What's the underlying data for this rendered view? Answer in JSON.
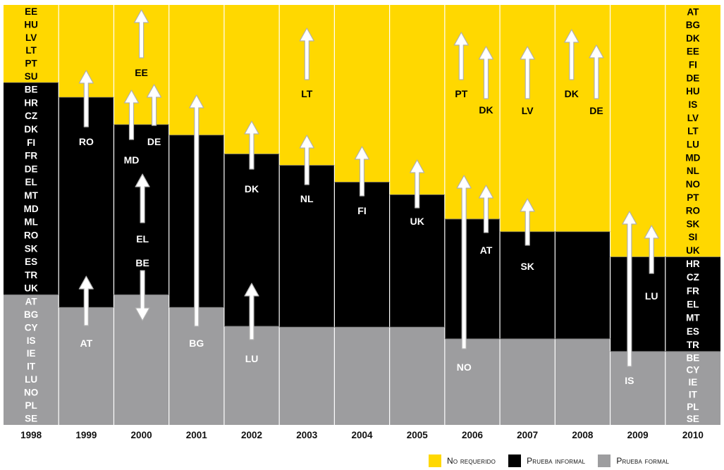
{
  "colors": {
    "no_requerido": "#FFD800",
    "informal": "#000000",
    "formal": "#9D9D9F",
    "arrow": "#FFFFFF"
  },
  "legend": [
    {
      "key": "no_requerido",
      "label": "No requerido"
    },
    {
      "key": "informal",
      "label": "Prueba informal"
    },
    {
      "key": "formal",
      "label": "Prueba formal"
    }
  ],
  "chart_data": {
    "type": "bar",
    "stacked": true,
    "categories": [
      "1998",
      "1999",
      "2000",
      "2001",
      "2002",
      "2003",
      "2004",
      "2005",
      "2006",
      "2007",
      "2008",
      "2009",
      "2010"
    ],
    "ylim": [
      0,
      100
    ],
    "series": [
      {
        "key": "formal",
        "name": "Prueba formal",
        "values": [
          31,
          28,
          31,
          28,
          23.5,
          23.3,
          23.3,
          23.3,
          20.5,
          20.5,
          20.5,
          17.5,
          17.5
        ]
      },
      {
        "key": "informal",
        "name": "Prueba informal",
        "values": [
          50.5,
          50,
          40.5,
          41,
          41,
          38.5,
          34.5,
          31.5,
          28.5,
          25.5,
          25.5,
          22.5,
          22.5
        ]
      },
      {
        "key": "no_requerido",
        "name": "No requerido",
        "values": [
          18.5,
          22,
          28.5,
          31,
          35.5,
          38.2,
          42.2,
          45.2,
          51,
          54,
          54,
          60,
          60
        ]
      }
    ],
    "segment_labels": {
      "1998": {
        "no_requerido": [
          "EE",
          "HU",
          "LV",
          "LT",
          "PT",
          "SU"
        ],
        "informal": [
          "BE",
          "HR",
          "CZ",
          "DK",
          "FI",
          "FR",
          "DE",
          "EL",
          "MT",
          "MD",
          "ML",
          "RO",
          "SK",
          "ES",
          "TR",
          "UK"
        ],
        "formal": [
          "AT",
          "BG",
          "CY",
          "IS",
          "IE",
          "IT",
          "LU",
          "NO",
          "PL",
          "SE"
        ]
      },
      "2010": {
        "no_requerido": [
          "AT",
          "BG",
          "DK",
          "EE",
          "FI",
          "DE",
          "HU",
          "IS",
          "LV",
          "LT",
          "LU",
          "MD",
          "NL",
          "NO",
          "PT",
          "RO",
          "SK",
          "SI",
          "UK"
        ],
        "informal": [
          "HR",
          "CZ",
          "FR",
          "EL",
          "MT",
          "ES",
          "TR"
        ],
        "formal": [
          "BE",
          "CY",
          "IE",
          "IT",
          "PL",
          "SE"
        ]
      }
    },
    "transitions": [
      {
        "year": "1999",
        "country": "RO",
        "direction": "up",
        "from": "informal",
        "to": "no_requerido"
      },
      {
        "year": "1999",
        "country": "AT",
        "direction": "up",
        "from": "formal",
        "to": "informal"
      },
      {
        "year": "2000",
        "country": "EE",
        "direction": "up",
        "from": "no_requerido",
        "to": "no_requerido"
      },
      {
        "year": "2000",
        "country": "MD",
        "direction": "up",
        "from": "informal",
        "to": "no_requerido"
      },
      {
        "year": "2000",
        "country": "DE",
        "direction": "up",
        "from": "informal",
        "to": "no_requerido"
      },
      {
        "year": "2000",
        "country": "EL",
        "direction": "up",
        "from": "informal",
        "to": "informal"
      },
      {
        "year": "2000",
        "country": "BE",
        "direction": "down",
        "from": "informal",
        "to": "formal"
      },
      {
        "year": "2001",
        "country": "BG",
        "direction": "up",
        "from": "formal",
        "to": "no_requerido"
      },
      {
        "year": "2002",
        "country": "DK",
        "direction": "up",
        "from": "informal",
        "to": "no_requerido"
      },
      {
        "year": "2002",
        "country": "LU",
        "direction": "up",
        "from": "formal",
        "to": "informal"
      },
      {
        "year": "2003",
        "country": "LT",
        "direction": "up",
        "from": "no_requerido",
        "to": "no_requerido"
      },
      {
        "year": "2003",
        "country": "NL",
        "direction": "up",
        "from": "informal",
        "to": "no_requerido"
      },
      {
        "year": "2004",
        "country": "FI",
        "direction": "up",
        "from": "informal",
        "to": "no_requerido"
      },
      {
        "year": "2005",
        "country": "UK",
        "direction": "up",
        "from": "informal",
        "to": "no_requerido"
      },
      {
        "year": "2006",
        "country": "PT",
        "direction": "up",
        "from": "no_requerido",
        "to": "no_requerido"
      },
      {
        "year": "2006",
        "country": "DK",
        "direction": "up",
        "from": "no_requerido",
        "to": "no_requerido"
      },
      {
        "year": "2006",
        "country": "NO",
        "direction": "up",
        "from": "formal",
        "to": "no_requerido"
      },
      {
        "year": "2006",
        "country": "AT",
        "direction": "up",
        "from": "informal",
        "to": "no_requerido"
      },
      {
        "year": "2007",
        "country": "LV",
        "direction": "up",
        "from": "no_requerido",
        "to": "no_requerido"
      },
      {
        "year": "2007",
        "country": "SK",
        "direction": "up",
        "from": "informal",
        "to": "no_requerido"
      },
      {
        "year": "2008",
        "country": "DK",
        "direction": "up",
        "from": "no_requerido",
        "to": "no_requerido"
      },
      {
        "year": "2008",
        "country": "DE",
        "direction": "up",
        "from": "no_requerido",
        "to": "no_requerido"
      },
      {
        "year": "2009",
        "country": "IS",
        "direction": "up",
        "from": "formal",
        "to": "no_requerido"
      },
      {
        "year": "2009",
        "country": "LU",
        "direction": "up",
        "from": "informal",
        "to": "no_requerido"
      }
    ]
  }
}
